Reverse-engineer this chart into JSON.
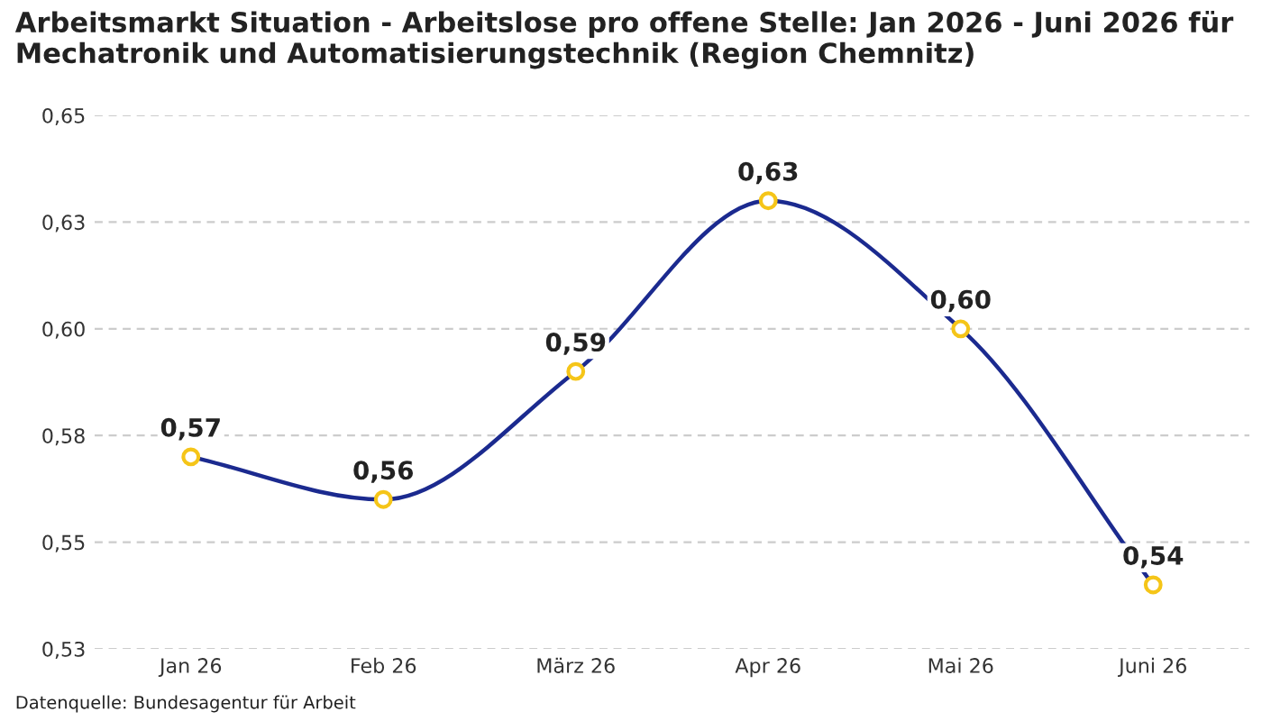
{
  "chart_data": {
    "type": "line",
    "title": "Arbeitsmarkt Situation - Arbeitslose pro offene Stelle: Jan 2026 - Juni 2026 für\nMechatronik und Automatisierungstechnik (Region Chemnitz)",
    "categories": [
      "Jan 26",
      "Feb 26",
      "März 26",
      "Apr 26",
      "Mai 26",
      "Juni 26"
    ],
    "series": [
      {
        "color": "#1b2a8f",
        "values": [
          0.57,
          0.56,
          0.59,
          0.63,
          0.6,
          0.54
        ],
        "value_labels": [
          "0,57",
          "0,56",
          "0,59",
          "0,63",
          "0,60",
          "0,54"
        ]
      }
    ],
    "ylim": [
      0.525,
      0.65
    ],
    "yticks": [
      {
        "value": 0.525,
        "label": "0,53"
      },
      {
        "value": 0.55,
        "label": "0,55"
      },
      {
        "value": 0.575,
        "label": "0,58"
      },
      {
        "value": 0.6,
        "label": "0,60"
      },
      {
        "value": 0.625,
        "label": "0,63"
      },
      {
        "value": 0.65,
        "label": "0,65"
      }
    ],
    "grid": "y",
    "marker": "circle",
    "line_style": "solid",
    "annotations": [
      "Datenquelle: Bundesagentur für Arbeit"
    ]
  }
}
